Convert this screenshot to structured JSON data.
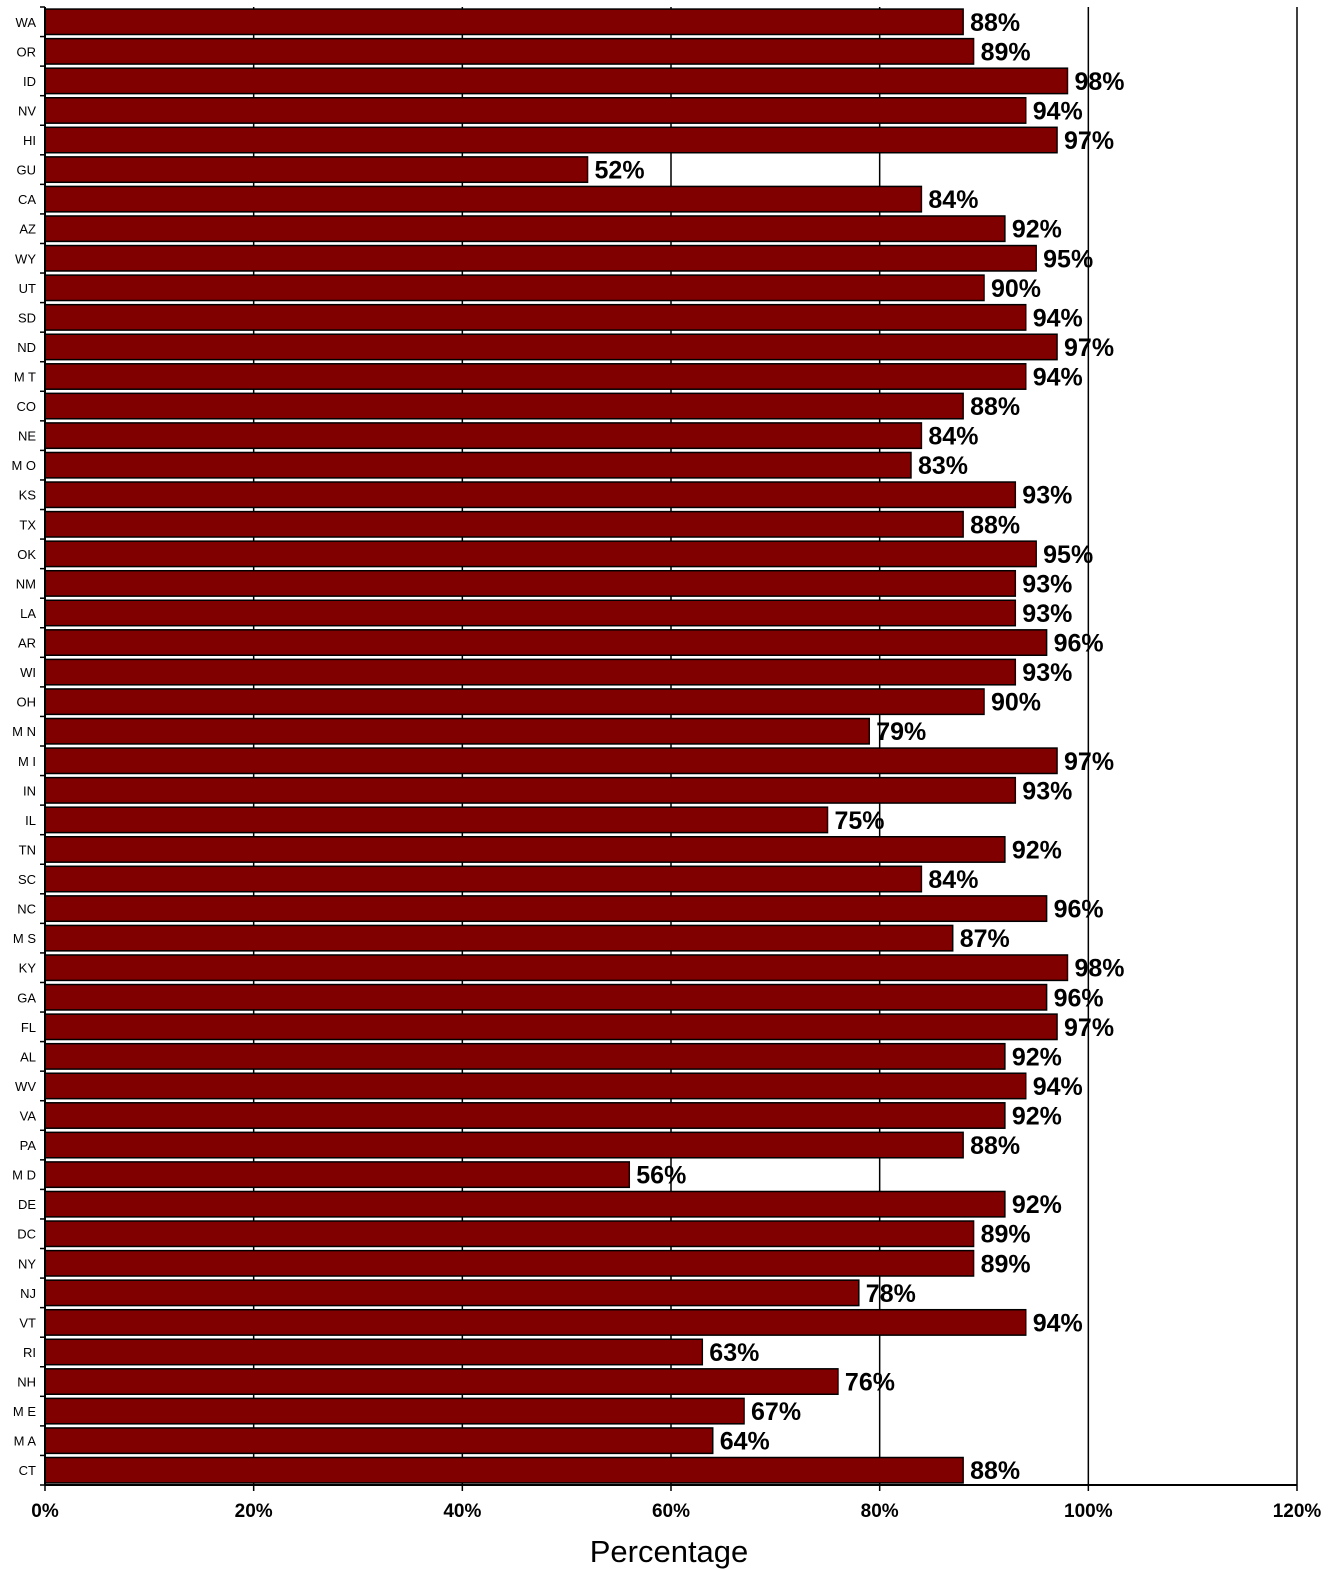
{
  "chart_data": {
    "type": "bar",
    "orientation": "horizontal",
    "categories": [
      "WA",
      "OR",
      "ID",
      "NV",
      "HI",
      "GU",
      "CA",
      "AZ",
      "WY",
      "UT",
      "SD",
      "ND",
      "MT",
      "CO",
      "NE",
      "MO",
      "KS",
      "TX",
      "OK",
      "NM",
      "LA",
      "AR",
      "WI",
      "OH",
      "MN",
      "MI",
      "IN",
      "IL",
      "TN",
      "SC",
      "NC",
      "MS",
      "KY",
      "GA",
      "FL",
      "AL",
      "WV",
      "VA",
      "PA",
      "MD",
      "DE",
      "DC",
      "NY",
      "NJ",
      "VT",
      "RI",
      "NH",
      "ME",
      "MA",
      "CT"
    ],
    "category_labels": [
      "WA",
      "OR",
      "ID",
      "NV",
      "HI",
      "GU",
      "CA",
      "AZ",
      "WY",
      "UT",
      "SD",
      "ND",
      "M T",
      "CO",
      "NE",
      "M O",
      "KS",
      "TX",
      "OK",
      "NM",
      "LA",
      "AR",
      "WI",
      "OH",
      "M N",
      "M I",
      "IN",
      "IL",
      "TN",
      "SC",
      "NC",
      "M S",
      "KY",
      "GA",
      "FL",
      "AL",
      "WV",
      "VA",
      "PA",
      "M D",
      "DE",
      "DC",
      "NY",
      "NJ",
      "VT",
      "RI",
      "NH",
      "M E",
      "M A",
      "CT"
    ],
    "values": [
      88,
      89,
      98,
      94,
      97,
      52,
      84,
      92,
      95,
      90,
      94,
      97,
      94,
      88,
      84,
      83,
      93,
      88,
      95,
      93,
      93,
      96,
      93,
      90,
      79,
      97,
      93,
      75,
      92,
      84,
      96,
      87,
      98,
      96,
      97,
      92,
      94,
      92,
      88,
      56,
      92,
      89,
      89,
      78,
      94,
      63,
      76,
      67,
      64,
      88
    ],
    "value_labels": [
      "88%",
      "89%",
      "98%",
      "94%",
      "97%",
      "52%",
      "84%",
      "92%",
      "95%",
      "90%",
      "94%",
      "97%",
      "94%",
      "88%",
      "84%",
      "83%",
      "93%",
      "88%",
      "95%",
      "93%",
      "93%",
      "96%",
      "93%",
      "90%",
      "79%",
      "97%",
      "93%",
      "75%",
      "92%",
      "84%",
      "96%",
      "87%",
      "98%",
      "96%",
      "97%",
      "92%",
      "94%",
      "92%",
      "88%",
      "56%",
      "92%",
      "89%",
      "89%",
      "78%",
      "94%",
      "63%",
      "76%",
      "67%",
      "64%",
      "88%"
    ],
    "xlim": [
      0,
      120
    ],
    "x_ticks": [
      0,
      20,
      40,
      60,
      80,
      100,
      120
    ],
    "x_tick_labels": [
      "0%",
      "20%",
      "40%",
      "60%",
      "80%",
      "100%",
      "120%"
    ],
    "xlabel": "Percentage",
    "ylabel": "",
    "title": "",
    "grid": "vertical",
    "legend": "none",
    "bar_color": "#800000",
    "bar_edge_color": "#000000"
  }
}
